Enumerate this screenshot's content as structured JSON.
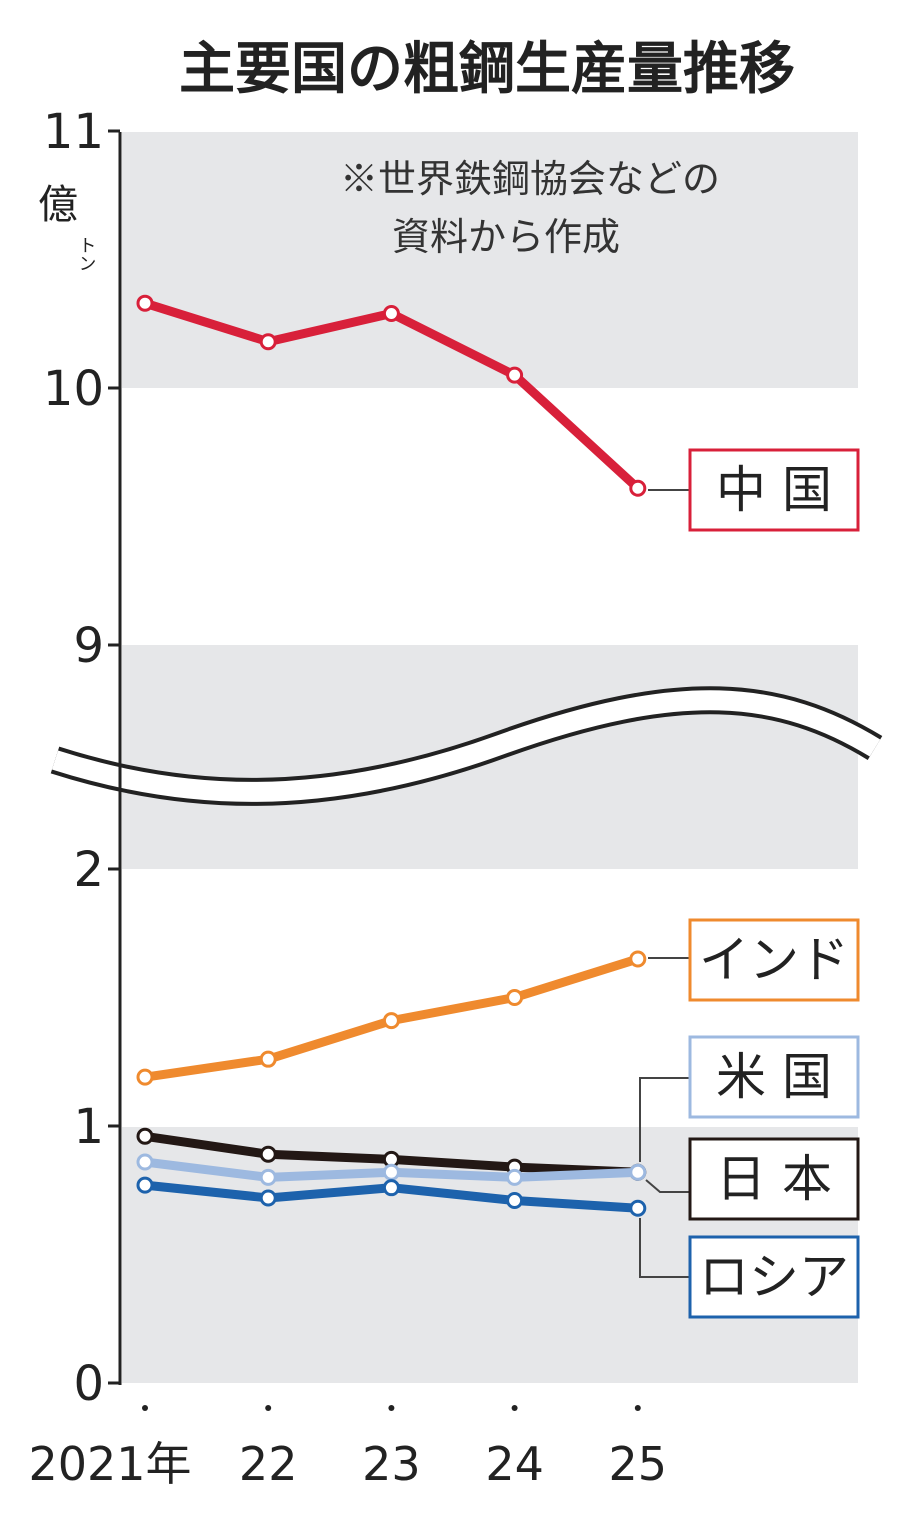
{
  "chart_data": {
    "type": "line",
    "title": "主要国の粗鋼生産量推移",
    "unit": "億トン",
    "unit_main": "億",
    "unit_sub": "トン",
    "note": [
      "※世界鉄鋼協会などの",
      "資料から作成"
    ],
    "x": [
      "2021年",
      "22",
      "23",
      "24",
      "25"
    ],
    "yticks": [
      "0",
      "1",
      "2",
      "9",
      "10",
      "11"
    ],
    "y_axis_break": [
      2,
      9
    ],
    "ylim": [
      0,
      11
    ],
    "grid": false,
    "legend": "right, boxed labels at line ends",
    "series": [
      {
        "name": "中 国",
        "color": "#d8203a",
        "values": [
          10.33,
          10.18,
          10.29,
          10.05,
          9.61
        ]
      },
      {
        "name": "インド",
        "color": "#ef8a2e",
        "values": [
          1.19,
          1.26,
          1.41,
          1.5,
          1.65
        ]
      },
      {
        "name": "日 本",
        "color": "#231815",
        "values": [
          0.96,
          0.89,
          0.87,
          0.84,
          0.82
        ]
      },
      {
        "name": "米 国",
        "color": "#9db9e0",
        "values": [
          0.86,
          0.8,
          0.82,
          0.8,
          0.82
        ]
      },
      {
        "name": "ロシア",
        "color": "#1d62ac",
        "values": [
          0.77,
          0.72,
          0.76,
          0.71,
          0.68
        ]
      }
    ]
  }
}
